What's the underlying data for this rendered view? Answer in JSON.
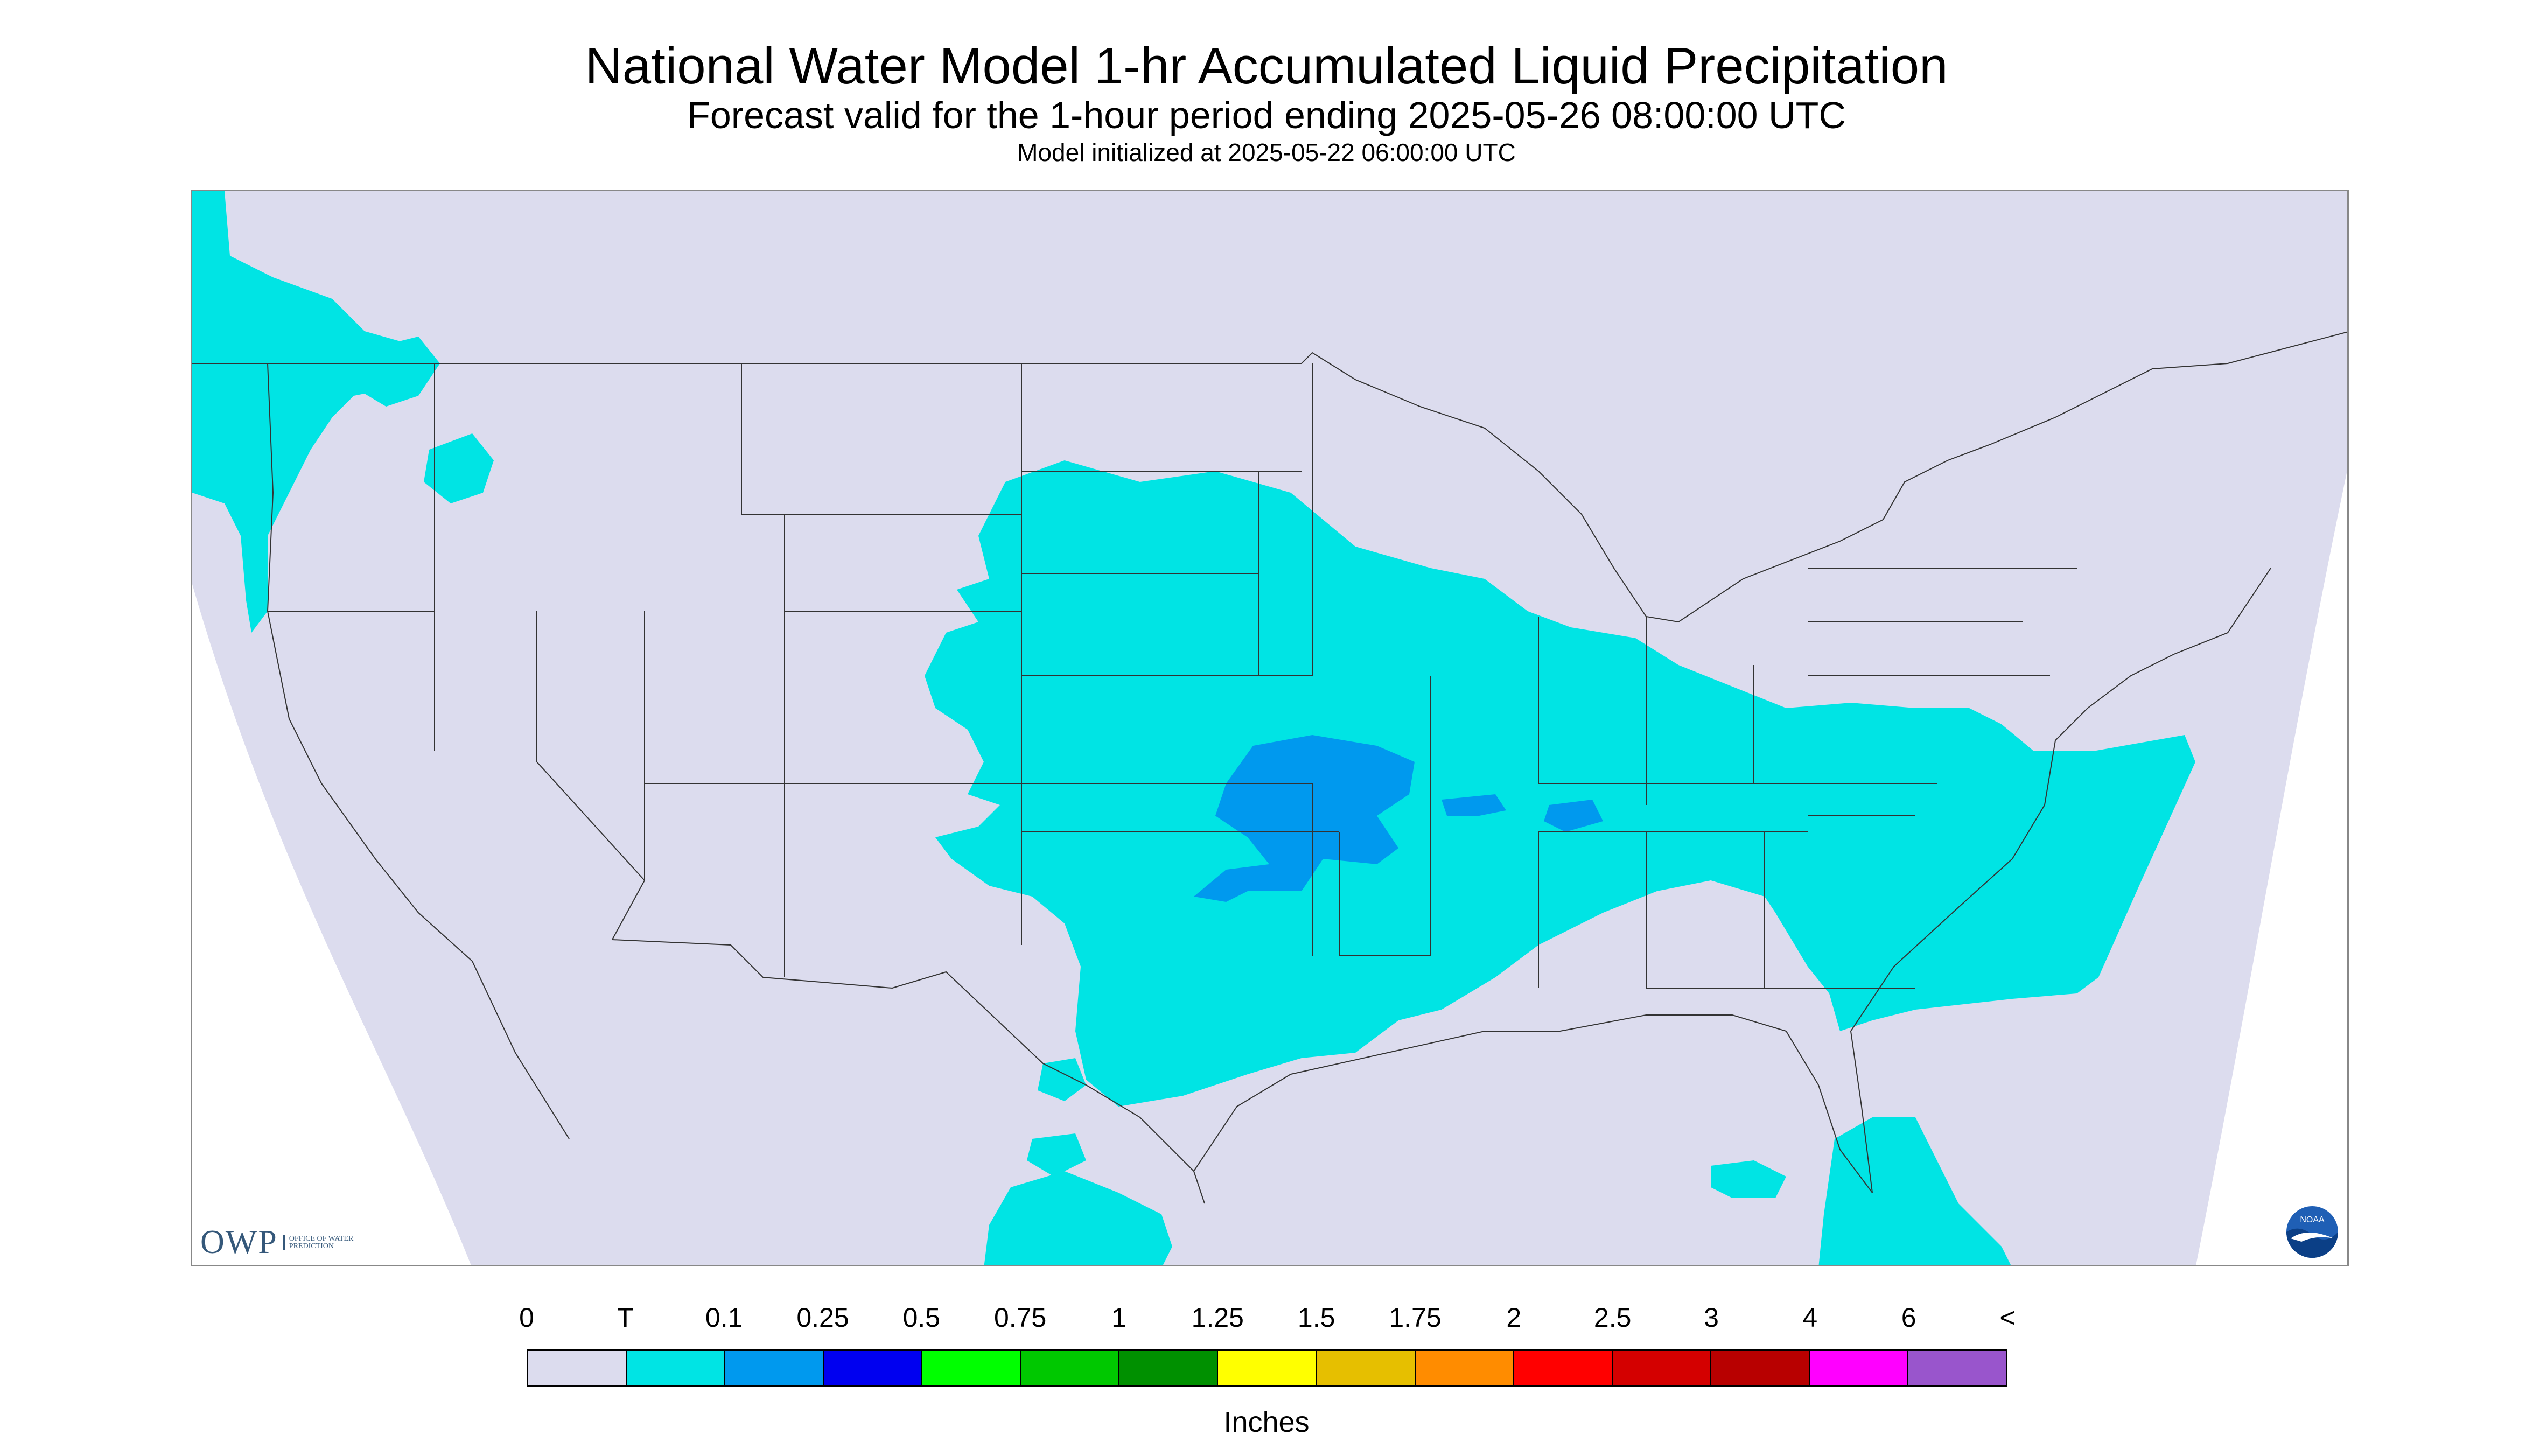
{
  "header": {
    "title": "National Water Model 1-hr Accumulated Liquid Precipitation",
    "subtitle": "Forecast valid for the 1-hour period ending 2025-05-26 08:00:00 UTC",
    "init_line": "Model initialized at 2025-05-22 06:00:00 UTC"
  },
  "logos": {
    "owp_letters": "OWP",
    "owp_subtext": "OFFICE OF WATER PREDICTION",
    "noaa": "NOAA"
  },
  "colors": {
    "background_field": "#dcdcee",
    "precip_light": "#00e4e4",
    "precip_medium": "#0099ee",
    "boundary": "#333333"
  },
  "legend": {
    "units": "Inches",
    "ticks": [
      "0",
      "T",
      "0.1",
      "0.25",
      "0.5",
      "0.75",
      "1",
      "1.25",
      "1.5",
      "1.75",
      "2",
      "2.5",
      "3",
      "4",
      "6",
      "<"
    ],
    "colors": [
      "#dcdcee",
      "#00e4e4",
      "#0099ee",
      "#0000f0",
      "#00ff00",
      "#00c800",
      "#009000",
      "#ffff00",
      "#e6bf00",
      "#ff8c00",
      "#ff0000",
      "#d40000",
      "#b80000",
      "#ff00ff",
      "#9955cc"
    ]
  }
}
